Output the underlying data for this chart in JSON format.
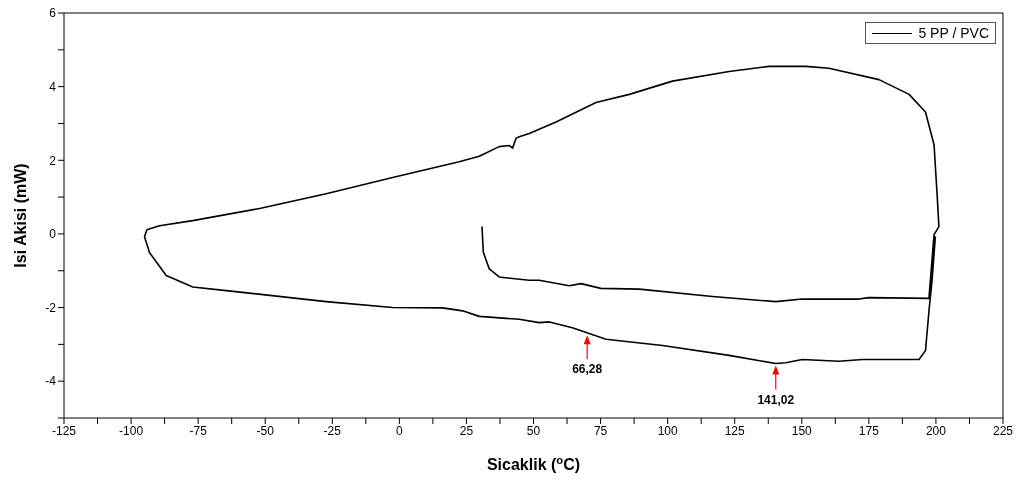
{
  "chart_data": {
    "type": "line",
    "xlabel": "Sicaklik ($^{o}$C)",
    "ylabel": "Isi Akisi (mW)",
    "xlim": [
      -125,
      225
    ],
    "ylim": [
      -5,
      6
    ],
    "xticks": [
      -125,
      {
        "value": -112.5,
        "label": null
      },
      -100,
      {
        "value": -87.5,
        "label": null
      },
      -75,
      {
        "value": -62.5,
        "label": null
      },
      -50,
      {
        "value": -37.5,
        "label": null
      },
      -25,
      {
        "value": -12.5,
        "label": null
      },
      0,
      {
        "value": 12.5,
        "label": null
      },
      25,
      {
        "value": 37.5,
        "label": null
      },
      50,
      {
        "value": 62.5,
        "label": null
      },
      75,
      {
        "value": 87.5,
        "label": null
      },
      100,
      {
        "value": 112.5,
        "label": null
      },
      125,
      {
        "value": 137.5,
        "label": null
      },
      150,
      {
        "value": 162.5,
        "label": null
      },
      175,
      {
        "value": 187.5,
        "label": null
      },
      200,
      {
        "value": 212.5,
        "label": null
      },
      225
    ],
    "yticks": [
      {
        "value": -5,
        "label": null
      },
      -4,
      {
        "value": -3,
        "label": null
      },
      -2,
      {
        "value": -1,
        "label": null
      },
      0,
      {
        "value": 1,
        "label": null
      },
      2,
      {
        "value": 3,
        "label": null
      },
      4,
      {
        "value": 5,
        "label": null
      },
      6
    ],
    "grid": false,
    "legend": "top right",
    "marker": "none",
    "line_style": "solid",
    "series": [
      {
        "name": "5 PP / PVC",
        "color": "#000000",
        "x": [
          30.8,
          31.3,
          33.5,
          37.2,
          48.4,
          52.1,
          63.3,
          67.7,
          75.1,
          89.4,
          116.7,
          140.3,
          150.2,
          171.3,
          175,
          197.4,
          199.3,
          201.1,
          200.5,
          199.3,
          196.1,
          190,
          178.8,
          160.1,
          151.5,
          137.8,
          122.9,
          101.8,
          85.7,
          73.3,
          58.4,
          48.4,
          44.7,
          43.5,
          42.2,
          41,
          37.2,
          29.8,
          22.3,
          -2.5,
          -27.3,
          -52.1,
          -77,
          -89.4,
          -94.1,
          -95,
          -93.1,
          -86.9,
          -77,
          -64.5,
          -27.3,
          -2.5,
          16.1,
          23.6,
          29.8,
          44.7,
          52.1,
          55.9,
          64.5,
          77,
          98.1,
          122.9,
          140.3,
          144,
          150.2,
          163.9,
          172.6,
          193.7,
          196.1,
          197.4,
          198.6,
          199.8
        ],
        "values": [
          0.2,
          -0.5,
          -0.95,
          -1.17,
          -1.26,
          -1.26,
          -1.41,
          -1.35,
          -1.48,
          -1.5,
          -1.7,
          -1.84,
          -1.77,
          -1.77,
          -1.73,
          -1.75,
          -0.02,
          0.2,
          1.0,
          2.42,
          3.31,
          3.79,
          4.19,
          4.5,
          4.55,
          4.55,
          4.41,
          4.15,
          3.79,
          3.57,
          3.04,
          2.73,
          2.64,
          2.6,
          2.33,
          2.4,
          2.37,
          2.11,
          1.96,
          1.53,
          1.09,
          0.69,
          0.36,
          0.22,
          0.11,
          -0.08,
          -0.51,
          -1.13,
          -1.44,
          -1.54,
          -1.84,
          -2.0,
          -2.01,
          -2.09,
          -2.24,
          -2.32,
          -2.41,
          -2.39,
          -2.55,
          -2.86,
          -3.03,
          -3.3,
          -3.52,
          -3.5,
          -3.41,
          -3.46,
          -3.41,
          -3.41,
          -3.17,
          -2.1,
          -1.22,
          -0.06
        ]
      }
    ],
    "annotations": [
      {
        "text": "66,28",
        "x": 70,
        "y": -2.7
      },
      {
        "text": "141,02",
        "x": 140.3,
        "y": -3.52
      }
    ]
  }
}
